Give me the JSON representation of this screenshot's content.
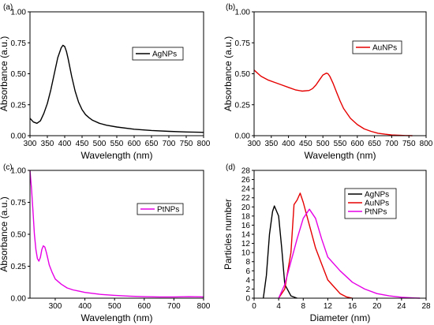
{
  "chart_data": [
    {
      "panel_label": "(a)",
      "type": "line",
      "xlabel": "Wavelength (nm)",
      "ylabel": "Absorbance (a.u.)",
      "xlim": [
        300,
        800
      ],
      "ylim": [
        0.0,
        1.0
      ],
      "xticks": [
        300,
        350,
        400,
        450,
        500,
        550,
        600,
        650,
        700,
        750,
        800
      ],
      "yticks": [
        0.0,
        0.25,
        0.5,
        0.75,
        1.0
      ],
      "ytick_decimals": 2,
      "legend_position": "top-right",
      "series": [
        {
          "name": "AgNPs",
          "color": "#000000",
          "x": [
            300,
            310,
            320,
            330,
            340,
            350,
            360,
            370,
            380,
            390,
            395,
            400,
            405,
            410,
            420,
            430,
            440,
            450,
            460,
            470,
            480,
            500,
            520,
            550,
            600,
            650,
            700,
            750,
            800
          ],
          "y": [
            0.14,
            0.11,
            0.1,
            0.12,
            0.18,
            0.26,
            0.37,
            0.5,
            0.63,
            0.71,
            0.73,
            0.72,
            0.68,
            0.62,
            0.48,
            0.36,
            0.27,
            0.21,
            0.17,
            0.145,
            0.125,
            0.1,
            0.085,
            0.07,
            0.052,
            0.042,
            0.035,
            0.03,
            0.027
          ]
        }
      ]
    },
    {
      "panel_label": "(b)",
      "type": "line",
      "xlabel": "Wavelength (nm)",
      "ylabel": "Absorbance (a.u.)",
      "xlim": [
        300,
        800
      ],
      "ylim": [
        0.0,
        1.0
      ],
      "xticks": [
        300,
        350,
        400,
        450,
        500,
        550,
        600,
        650,
        700,
        750,
        800
      ],
      "yticks": [
        0.0,
        0.25,
        0.5,
        0.75,
        1.0
      ],
      "ytick_decimals": 2,
      "legend_position": "top-right",
      "series": [
        {
          "name": "AuNPs",
          "color": "#e60000",
          "x": [
            300,
            320,
            340,
            360,
            380,
            400,
            420,
            440,
            460,
            470,
            480,
            490,
            500,
            510,
            515,
            520,
            530,
            540,
            550,
            560,
            580,
            600,
            620,
            640,
            660,
            680,
            700,
            720,
            740,
            760
          ],
          "y": [
            0.53,
            0.48,
            0.45,
            0.43,
            0.41,
            0.39,
            0.37,
            0.36,
            0.365,
            0.38,
            0.41,
            0.45,
            0.49,
            0.505,
            0.5,
            0.48,
            0.42,
            0.35,
            0.28,
            0.22,
            0.14,
            0.09,
            0.055,
            0.035,
            0.02,
            0.012,
            0.006,
            0.003,
            0.001,
            0.0
          ]
        }
      ]
    },
    {
      "panel_label": "(c)",
      "type": "line",
      "xlabel": "Wavelength (nm)",
      "ylabel": "Absorbance (a.u.)",
      "xlim": [
        215,
        800
      ],
      "ylim": [
        0.0,
        1.0
      ],
      "xticks": [
        300,
        400,
        500,
        600,
        700,
        800
      ],
      "yticks": [
        0.0,
        0.25,
        0.5,
        0.75,
        1.0
      ],
      "ytick_decimals": 2,
      "legend_position": "top-right",
      "series": [
        {
          "name": "PtNPs",
          "color": "#e600e6",
          "x": [
            215,
            220,
            225,
            230,
            235,
            240,
            245,
            250,
            255,
            260,
            265,
            270,
            275,
            280,
            290,
            300,
            320,
            340,
            360,
            380,
            400,
            450,
            500,
            550,
            600,
            650,
            700,
            750,
            800
          ],
          "y": [
            1.0,
            0.86,
            0.68,
            0.5,
            0.38,
            0.31,
            0.29,
            0.32,
            0.38,
            0.41,
            0.4,
            0.36,
            0.31,
            0.26,
            0.2,
            0.15,
            0.11,
            0.08,
            0.065,
            0.055,
            0.045,
            0.03,
            0.022,
            0.016,
            0.012,
            0.01,
            0.01,
            0.012,
            0.01
          ]
        }
      ]
    },
    {
      "panel_label": "(d)",
      "type": "line",
      "xlabel": "Diameter  (nm)",
      "ylabel": "Particles number",
      "xlim": [
        0,
        28
      ],
      "ylim": [
        0,
        28
      ],
      "xticks": [
        0,
        4,
        8,
        12,
        16,
        20,
        24,
        28
      ],
      "yticks": [
        0,
        2,
        4,
        6,
        8,
        10,
        12,
        14,
        16,
        18,
        20,
        22,
        24,
        26,
        28
      ],
      "ytick_decimals": 0,
      "legend_position": "top-right",
      "series": [
        {
          "name": "AgNPs",
          "color": "#000000",
          "x": [
            1.5,
            2,
            2.5,
            3,
            3.3,
            4,
            4.5,
            5,
            6,
            7
          ],
          "y": [
            0,
            5,
            14,
            19,
            20.2,
            18,
            11,
            3,
            0.5,
            0
          ]
        },
        {
          "name": "AuNPs",
          "color": "#e60000",
          "x": [
            4,
            5,
            6,
            6.5,
            7,
            7.5,
            8,
            9,
            10,
            11,
            12,
            13,
            14,
            15,
            16
          ],
          "y": [
            0,
            2,
            10,
            20.5,
            21.5,
            23,
            21,
            16,
            11,
            7.5,
            4,
            2.5,
            1,
            0.3,
            0
          ]
        },
        {
          "name": "PtNPs",
          "color": "#e600e6",
          "x": [
            4,
            5,
            6,
            7,
            8,
            9,
            10,
            11,
            12,
            14,
            16,
            18,
            20,
            22,
            24,
            26,
            27
          ],
          "y": [
            0,
            3,
            8,
            13,
            17.5,
            19.5,
            17.5,
            13,
            9,
            6,
            3.5,
            2,
            1,
            0.5,
            0.2,
            0.05,
            0
          ]
        }
      ]
    }
  ]
}
